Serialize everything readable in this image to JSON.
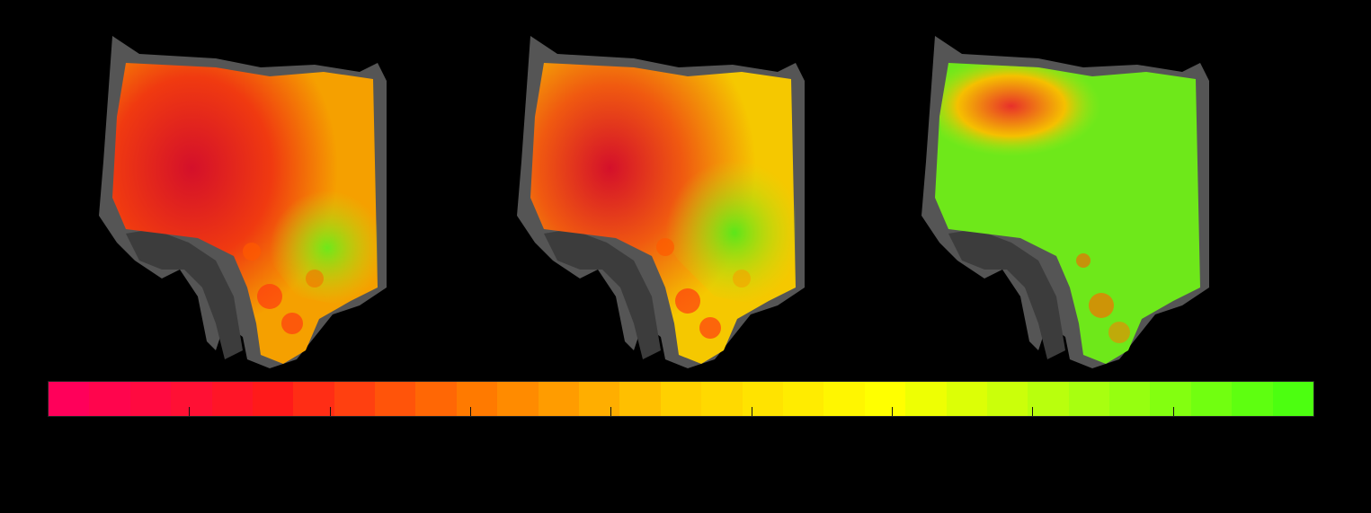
{
  "figure": {
    "panels": [
      {
        "id": "panel-1",
        "mesh": "3d-surface-heatmap",
        "dominant_colors": [
          "#e8202a",
          "#ff5a00",
          "#f5d400",
          "#5be61a"
        ]
      },
      {
        "id": "panel-2",
        "mesh": "3d-surface-heatmap",
        "dominant_colors": [
          "#e8202a",
          "#ff8a00",
          "#f5d400",
          "#5be61a"
        ]
      },
      {
        "id": "panel-3",
        "mesh": "3d-surface-heatmap",
        "dominant_colors": [
          "#ff3a10",
          "#f5d400",
          "#7ee810",
          "#5be61a"
        ]
      }
    ],
    "colorbar": {
      "gradient_stops": [
        "#ff005a",
        "#ff1a1a",
        "#ff7a00",
        "#ffd000",
        "#ffff00",
        "#a8ff10",
        "#4cff10"
      ],
      "segment_count": 31,
      "tick_count": 8
    },
    "background_color": "#000000",
    "shell_color": "#555555"
  }
}
